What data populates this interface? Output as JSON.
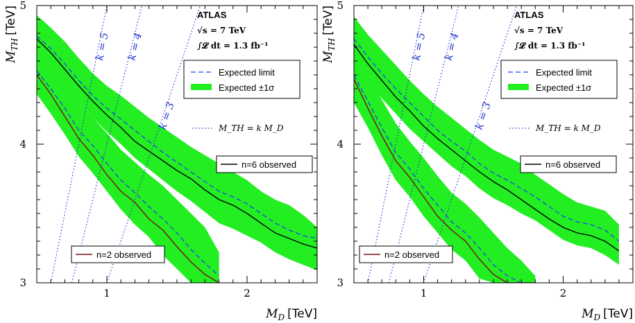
{
  "chart_data": [
    {
      "type": "line",
      "xlabel_var": "M",
      "xlabel_sub": "D",
      "xlabel_unit": "[TeV]",
      "ylabel_var": "M",
      "ylabel_sub": "TH",
      "ylabel_unit": "[TeV]",
      "xlim": [
        0.5,
        2.5
      ],
      "ylim": [
        3,
        5
      ],
      "xticks": [
        "1",
        "2"
      ],
      "yticks": [
        "3",
        "4",
        "5"
      ],
      "header": {
        "brand": "ATLAS",
        "sqrt_s": "√s = 7 TeV",
        "lumi": "∫𝓛 dt = 1.3 fb⁻¹"
      },
      "legend": {
        "expected": "Expected limit",
        "band": "Expected ±1σ",
        "k_relation": "M_TH = k M_D",
        "n6": "n=6 observed",
        "n2": "n=2 observed"
      },
      "k_labels": [
        "k = 5",
        "k = 4",
        "k = 3"
      ],
      "k_values": [
        5,
        4,
        3
      ],
      "series": [
        {
          "name": "n=6 observed",
          "x": [
            0.5,
            0.6,
            0.7,
            0.8,
            0.9,
            1.0,
            1.1,
            1.2,
            1.3,
            1.4,
            1.5,
            1.6,
            1.7,
            1.8,
            1.9,
            2.0,
            2.1,
            2.2,
            2.3,
            2.4,
            2.5
          ],
          "observed": [
            4.76,
            4.66,
            4.54,
            4.42,
            4.31,
            4.21,
            4.12,
            4.02,
            3.95,
            3.88,
            3.81,
            3.75,
            3.67,
            3.6,
            3.56,
            3.5,
            3.43,
            3.36,
            3.32,
            3.28,
            3.25
          ],
          "expected": [
            4.78,
            4.69,
            4.58,
            4.46,
            4.35,
            4.26,
            4.18,
            4.1,
            4.02,
            3.94,
            3.87,
            3.8,
            3.73,
            3.66,
            3.62,
            3.57,
            3.5,
            3.43,
            3.38,
            3.34,
            3.32
          ],
          "band_low": [
            4.62,
            4.53,
            4.42,
            4.3,
            4.19,
            4.09,
            4.0,
            3.9,
            3.82,
            3.74,
            3.66,
            3.59,
            3.51,
            3.43,
            3.39,
            3.34,
            3.29,
            3.22,
            3.17,
            3.13,
            3.09
          ],
          "band_high": [
            4.93,
            4.84,
            4.74,
            4.62,
            4.51,
            4.42,
            4.35,
            4.27,
            4.19,
            4.12,
            4.05,
            3.98,
            3.92,
            3.86,
            3.8,
            3.74,
            3.66,
            3.6,
            3.56,
            3.49,
            3.4
          ]
        },
        {
          "name": "n=2 observed",
          "x": [
            0.5,
            0.6,
            0.7,
            0.8,
            0.9,
            1.0,
            1.1,
            1.2,
            1.3,
            1.4,
            1.5,
            1.6,
            1.7,
            1.8
          ],
          "observed": [
            4.5,
            4.36,
            4.2,
            4.04,
            3.92,
            3.78,
            3.66,
            3.58,
            3.46,
            3.38,
            3.26,
            3.15,
            3.06,
            3.0
          ],
          "expected": [
            4.53,
            4.4,
            4.26,
            4.1,
            3.99,
            3.86,
            3.74,
            3.65,
            3.55,
            3.46,
            3.36,
            3.24,
            3.14,
            3.05
          ],
          "band_low": [
            4.36,
            4.22,
            4.07,
            3.91,
            3.79,
            3.66,
            3.53,
            3.42,
            3.33,
            3.2,
            3.1,
            3.0,
            3.0,
            3.0
          ],
          "band_high": [
            4.7,
            4.57,
            4.44,
            4.3,
            4.19,
            4.08,
            3.96,
            3.87,
            3.78,
            3.7,
            3.6,
            3.5,
            3.4,
            3.22
          ]
        }
      ]
    },
    {
      "type": "line",
      "xlabel_var": "M",
      "xlabel_sub": "D",
      "xlabel_unit": "[TeV]",
      "ylabel_var": "M",
      "ylabel_sub": "TH",
      "ylabel_unit": "[TeV]",
      "xlim": [
        0.5,
        2.5
      ],
      "ylim": [
        3,
        5
      ],
      "xticks": [
        "1",
        "2"
      ],
      "yticks": [
        "3",
        "4",
        "5"
      ],
      "header": {
        "brand": "ATLAS",
        "sqrt_s": "√s = 7 TeV",
        "lumi": "∫𝓛 dt = 1.3 fb⁻¹"
      },
      "legend": {
        "expected": "Expected limit",
        "band": "Expected ±1σ",
        "k_relation": "M_TH = k M_D",
        "n6": "n=6 observed",
        "n2": "n=2 observed"
      },
      "k_labels": [
        "k = 5",
        "k = 4",
        "k = 3"
      ],
      "k_values": [
        5,
        4,
        3
      ],
      "series": [
        {
          "name": "n=6 observed",
          "x": [
            0.5,
            0.6,
            0.7,
            0.8,
            0.9,
            1.0,
            1.1,
            1.2,
            1.3,
            1.4,
            1.5,
            1.6,
            1.7,
            1.8,
            1.9,
            2.0,
            2.1,
            2.2,
            2.3,
            2.4
          ],
          "observed": [
            4.72,
            4.58,
            4.46,
            4.34,
            4.24,
            4.13,
            4.04,
            3.96,
            3.88,
            3.8,
            3.73,
            3.67,
            3.6,
            3.53,
            3.46,
            3.4,
            3.36,
            3.34,
            3.3,
            3.23
          ],
          "expected": [
            4.76,
            4.63,
            4.51,
            4.4,
            4.3,
            4.2,
            4.1,
            4.02,
            3.95,
            3.86,
            3.79,
            3.74,
            3.68,
            3.62,
            3.55,
            3.48,
            3.44,
            3.42,
            3.38,
            3.3
          ],
          "band_low": [
            4.58,
            4.45,
            4.33,
            4.22,
            4.11,
            4.02,
            3.93,
            3.84,
            3.77,
            3.68,
            3.61,
            3.56,
            3.5,
            3.45,
            3.38,
            3.31,
            3.27,
            3.25,
            3.2,
            3.13
          ],
          "band_high": [
            4.92,
            4.79,
            4.68,
            4.57,
            4.46,
            4.36,
            4.27,
            4.19,
            4.11,
            4.03,
            3.96,
            3.91,
            3.86,
            3.78,
            3.71,
            3.64,
            3.58,
            3.55,
            3.52,
            3.42
          ]
        },
        {
          "name": "n=2 observed",
          "x": [
            0.5,
            0.6,
            0.7,
            0.8,
            0.9,
            1.0,
            1.1,
            1.2,
            1.3,
            1.4,
            1.5,
            1.6,
            1.7,
            1.8
          ],
          "observed": [
            4.47,
            4.26,
            4.06,
            3.88,
            3.76,
            3.62,
            3.48,
            3.38,
            3.3,
            3.17,
            3.06,
            3.0,
            3.0,
            3.0
          ],
          "expected": [
            4.5,
            4.31,
            4.12,
            3.94,
            3.82,
            3.68,
            3.56,
            3.44,
            3.36,
            3.25,
            3.13,
            3.05,
            3.0,
            3.0
          ],
          "band_low": [
            4.3,
            4.12,
            3.92,
            3.74,
            3.62,
            3.48,
            3.36,
            3.24,
            3.16,
            3.03,
            3.0,
            3.0,
            3.0,
            3.0
          ],
          "band_high": [
            4.68,
            4.5,
            4.32,
            4.15,
            4.02,
            3.9,
            3.77,
            3.65,
            3.57,
            3.47,
            3.36,
            3.25,
            3.16,
            3.05
          ]
        }
      ]
    }
  ]
}
